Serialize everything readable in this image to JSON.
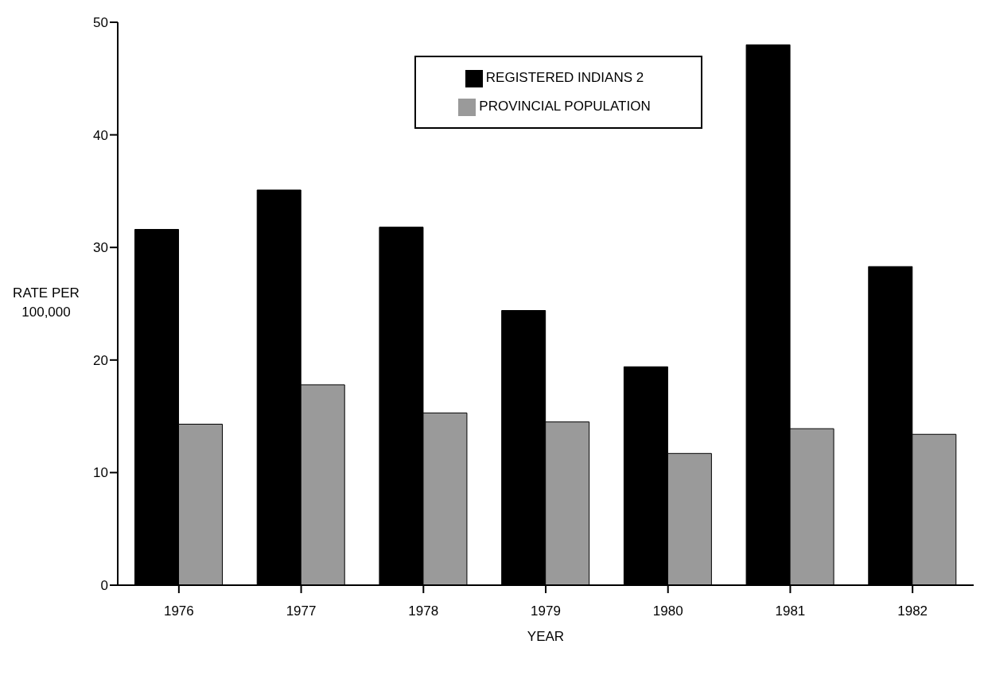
{
  "chart_data": {
    "type": "bar",
    "xlabel": "YEAR",
    "ylabel": "RATE PER 100,000",
    "categories": [
      "1976",
      "1977",
      "1978",
      "1979",
      "1980",
      "1981",
      "1982"
    ],
    "series": [
      {
        "name": "REGISTERED INDIANS 2",
        "color": "#000000",
        "values": [
          31.6,
          35.1,
          31.8,
          24.4,
          19.4,
          48.0,
          28.3
        ]
      },
      {
        "name": "PROVINCIAL POPULATION",
        "color": "#9a9a9a",
        "values": [
          14.3,
          17.8,
          15.3,
          14.5,
          11.7,
          13.9,
          13.4
        ]
      }
    ],
    "ylim": [
      0,
      50
    ],
    "yticks": [
      0,
      10,
      20,
      30,
      40,
      50
    ],
    "grid": false,
    "legend": "top"
  }
}
